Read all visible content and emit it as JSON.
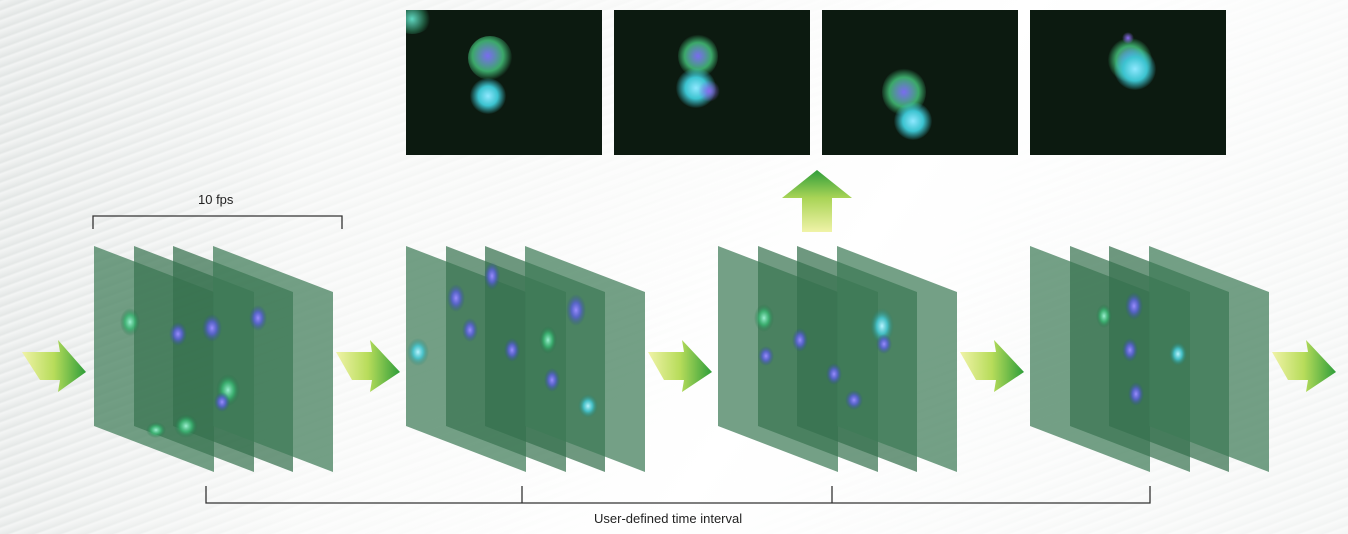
{
  "diagram": {
    "frame_rate_label": "10 fps",
    "interval_label": "User-defined time interval"
  },
  "colors": {
    "plane": "#3d7a56",
    "thumb_bg": "#0c1a10",
    "arrow_light": "#e9ef9a",
    "arrow_dark": "#3aa83c",
    "bracket": "#333333"
  },
  "icons": [
    "right-arrow-icon",
    "up-arrow-icon"
  ]
}
